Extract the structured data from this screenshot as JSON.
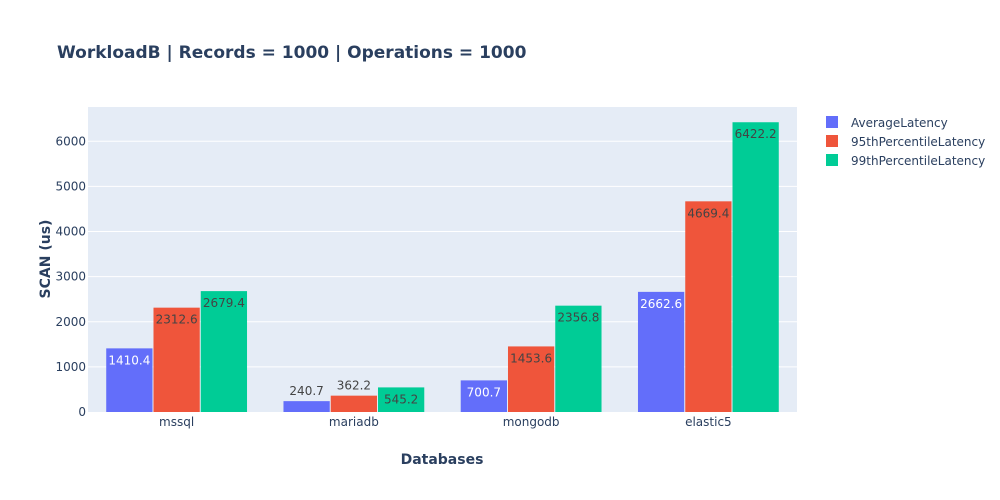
{
  "colors": {
    "background": "#ffffff",
    "plot_background": "#e5ecf6",
    "grid": "#ffffff",
    "text": "#2a3f5f"
  },
  "chart_data": {
    "type": "bar",
    "title": "WorkloadB | Records = 1000 | Operations = 1000",
    "xlabel": "Databases",
    "ylabel": "SCAN (us)",
    "categories": [
      "mssql",
      "mariadb",
      "mongodb",
      "elastic5"
    ],
    "ylim": [
      0,
      6760
    ],
    "yticks": [
      0,
      1000,
      2000,
      3000,
      4000,
      5000,
      6000
    ],
    "grid": true,
    "legend_position": "top-right",
    "series": [
      {
        "name": "AverageLatency",
        "color": "#636efa",
        "values": [
          1410.4,
          240.7,
          700.7,
          2662.6
        ],
        "labels": [
          "1410.4",
          "240.7",
          "700.7",
          "2662.6"
        ]
      },
      {
        "name": "95thPercentileLatency",
        "color": "#ef553b",
        "values": [
          2312.6,
          362.2,
          1453.6,
          4669.4
        ],
        "labels": [
          "2312.6",
          "362.2",
          "1453.6",
          "4669.4"
        ]
      },
      {
        "name": "99thPercentileLatency",
        "color": "#00cc96",
        "values": [
          2679.4,
          545.2,
          2356.8,
          6422.2
        ],
        "labels": [
          "2679.4",
          "545.2",
          "2356.8",
          "6422.2"
        ]
      }
    ]
  }
}
